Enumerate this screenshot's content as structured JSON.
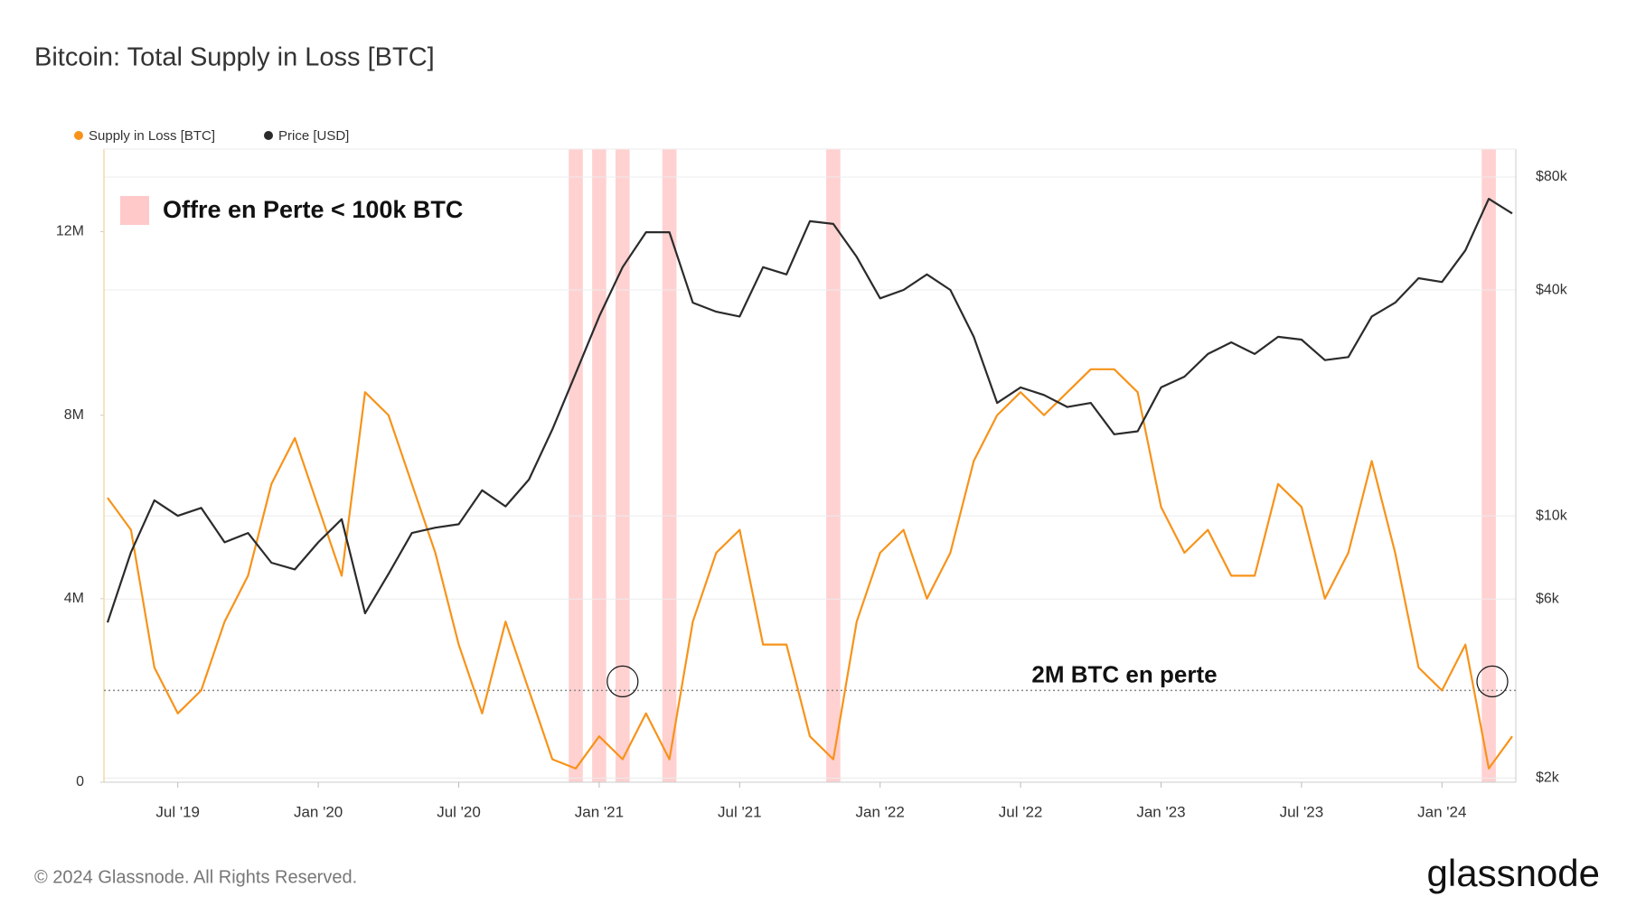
{
  "chart_data": {
    "type": "line",
    "title": "Bitcoin: Total Supply in Loss [BTC]",
    "x": [
      "2019-04",
      "2019-05",
      "2019-06",
      "2019-07",
      "2019-08",
      "2019-09",
      "2019-10",
      "2019-11",
      "2019-12",
      "2020-01",
      "2020-02",
      "2020-03",
      "2020-04",
      "2020-05",
      "2020-06",
      "2020-07",
      "2020-08",
      "2020-09",
      "2020-10",
      "2020-11",
      "2020-12",
      "2021-01",
      "2021-02",
      "2021-03",
      "2021-04",
      "2021-05",
      "2021-06",
      "2021-07",
      "2021-08",
      "2021-09",
      "2021-10",
      "2021-11",
      "2021-12",
      "2022-01",
      "2022-02",
      "2022-03",
      "2022-04",
      "2022-05",
      "2022-06",
      "2022-07",
      "2022-08",
      "2022-09",
      "2022-10",
      "2022-11",
      "2022-12",
      "2023-01",
      "2023-02",
      "2023-03",
      "2023-04",
      "2023-05",
      "2023-06",
      "2023-07",
      "2023-08",
      "2023-09",
      "2023-10",
      "2023-11",
      "2023-12",
      "2024-01",
      "2024-02",
      "2024-03",
      "2024-04"
    ],
    "series": [
      {
        "name": "Supply in Loss [BTC]",
        "color": "#f7931a",
        "axis": "y",
        "values": [
          6200000,
          5500000,
          2500000,
          1500000,
          2000000,
          3500000,
          4500000,
          6500000,
          7500000,
          6000000,
          4500000,
          8500000,
          8000000,
          6500000,
          5000000,
          3000000,
          1500000,
          3500000,
          2000000,
          500000,
          300000,
          1000000,
          500000,
          1500000,
          500000,
          3500000,
          5000000,
          5500000,
          3000000,
          3000000,
          1000000,
          500000,
          3500000,
          5000000,
          5500000,
          4000000,
          5000000,
          7000000,
          8000000,
          8500000,
          8000000,
          8500000,
          9000000,
          9000000,
          8500000,
          6000000,
          5000000,
          5500000,
          4500000,
          4500000,
          6500000,
          6000000,
          4000000,
          5000000,
          7000000,
          5000000,
          2500000,
          2000000,
          3000000,
          300000,
          1000000
        ]
      },
      {
        "name": "Price [USD]",
        "color": "#2b2b2b",
        "axis": "y2",
        "values": [
          5200,
          8000,
          11000,
          10000,
          10500,
          8500,
          9000,
          7500,
          7200,
          8500,
          9800,
          5500,
          7000,
          9000,
          9300,
          9500,
          11700,
          10600,
          12500,
          17000,
          24000,
          34000,
          46000,
          57000,
          57000,
          37000,
          35000,
          34000,
          46000,
          44000,
          61000,
          60000,
          49000,
          38000,
          40000,
          44000,
          40000,
          30000,
          20000,
          22000,
          21000,
          19500,
          20000,
          16500,
          16800,
          22000,
          23500,
          27000,
          29000,
          27000,
          30000,
          29500,
          26000,
          26500,
          34000,
          37000,
          43000,
          42000,
          51000,
          70000,
          64000
        ]
      }
    ],
    "xticks": [
      {
        "value": "2019-07",
        "label": "Jul '19"
      },
      {
        "value": "2020-01",
        "label": "Jan '20"
      },
      {
        "value": "2020-07",
        "label": "Jul '20"
      },
      {
        "value": "2021-01",
        "label": "Jan '21"
      },
      {
        "value": "2021-07",
        "label": "Jul '21"
      },
      {
        "value": "2022-01",
        "label": "Jan '22"
      },
      {
        "value": "2022-07",
        "label": "Jul '22"
      },
      {
        "value": "2023-01",
        "label": "Jan '23"
      },
      {
        "value": "2023-07",
        "label": "Jul '23"
      },
      {
        "value": "2024-01",
        "label": "Jan '24"
      }
    ],
    "ylim": [
      0,
      13800000
    ],
    "yticks": [
      0,
      {
        "value": 4000000,
        "label": "4M"
      },
      {
        "value": 8000000,
        "label": "8M"
      },
      {
        "value": 12000000,
        "label": "12M"
      }
    ],
    "y2lim": [
      1950,
      95000
    ],
    "y2log": true,
    "y2ticks": [
      {
        "value": 2000,
        "label": "$2k"
      },
      {
        "value": 6000,
        "label": "$6k"
      },
      {
        "value": 10000,
        "label": "$10k"
      },
      {
        "value": 40000,
        "label": "$40k"
      },
      {
        "value": 80000,
        "label": "$80k"
      }
    ],
    "grid": true,
    "highlight_months": [
      "2020-12",
      "2021-01",
      "2021-02",
      "2021-04",
      "2021-11",
      "2024-03"
    ],
    "highlight_color": "#ffc9c9",
    "highlight_label": "Offre en Perte < 100k BTC",
    "reference_line": {
      "value": 2000000,
      "label": "2M BTC en perte"
    },
    "footer": "© 2024 Glassnode. All Rights Reserved.",
    "brand": "glassnode"
  }
}
